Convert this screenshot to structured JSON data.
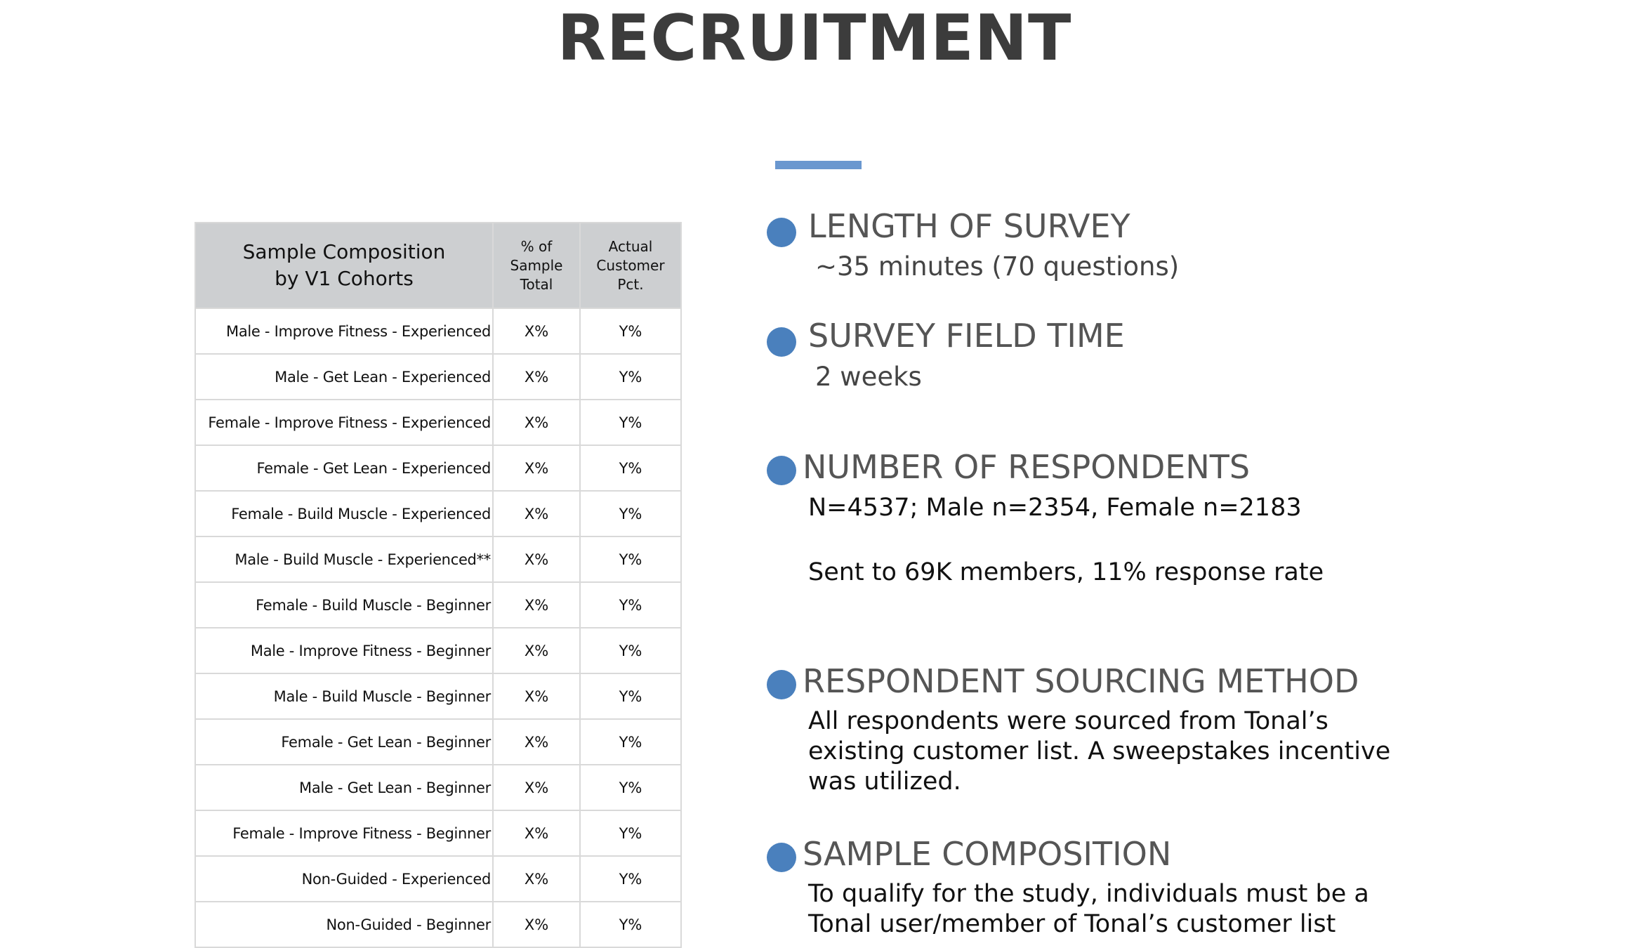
{
  "page": {
    "title": "RECRUITMENT"
  },
  "table": {
    "headers": {
      "cohort_line1": "Sample Composition",
      "cohort_line2": "by V1 Cohorts",
      "pct_line1": "% of",
      "pct_line2": "Sample",
      "pct_line3": "Total",
      "actual_line1": "Actual",
      "actual_line2": "Customer",
      "actual_line3": "Pct."
    },
    "rows": [
      {
        "cohort": "Male - Improve Fitness - Experienced",
        "pct": "X%",
        "actual": "Y%"
      },
      {
        "cohort": "Male - Get Lean - Experienced",
        "pct": "X%",
        "actual": "Y%"
      },
      {
        "cohort": "Female - Improve Fitness - Experienced",
        "pct": "X%",
        "actual": "Y%"
      },
      {
        "cohort": "Female - Get Lean - Experienced",
        "pct": "X%",
        "actual": "Y%"
      },
      {
        "cohort": "Female - Build Muscle - Experienced",
        "pct": "X%",
        "actual": "Y%"
      },
      {
        "cohort": "Male - Build Muscle - Experienced**",
        "pct": "X%",
        "actual": "Y%"
      },
      {
        "cohort": "Female - Build Muscle - Beginner",
        "pct": "X%",
        "actual": "Y%"
      },
      {
        "cohort": "Male - Improve Fitness - Beginner",
        "pct": "X%",
        "actual": "Y%"
      },
      {
        "cohort": "Male - Build Muscle - Beginner",
        "pct": "X%",
        "actual": "Y%"
      },
      {
        "cohort": "Female - Get Lean - Beginner",
        "pct": "X%",
        "actual": "Y%"
      },
      {
        "cohort": "Male - Get Lean - Beginner",
        "pct": "X%",
        "actual": "Y%"
      },
      {
        "cohort": "Female - Improve Fitness - Beginner",
        "pct": "X%",
        "actual": "Y%"
      },
      {
        "cohort": "Non-Guided - Experienced",
        "pct": "X%",
        "actual": "Y%"
      },
      {
        "cohort": "Non-Guided - Beginner",
        "pct": "X%",
        "actual": "Y%"
      }
    ]
  },
  "sections": {
    "length": {
      "heading": "LENGTH OF SURVEY",
      "detail": "~35 minutes (70 questions)"
    },
    "field_time": {
      "heading": "SURVEY FIELD TIME",
      "detail": "2 weeks"
    },
    "respondents": {
      "heading": "NUMBER OF RESPONDENTS",
      "detail1": "N=4537; Male n=2354, Female n=2183",
      "detail2": "Sent to 69K members, 11% response rate"
    },
    "sourcing": {
      "heading": "RESPONDENT SOURCING METHOD",
      "line1": "All respondents were sourced from Tonal’s",
      "line2": "existing customer list. A sweepstakes incentive",
      "line3": "was utilized."
    },
    "composition": {
      "heading": "SAMPLE COMPOSITION",
      "line1": "To qualify for the study, individuals must be a",
      "line2": "Tonal user/member of Tonal’s customer list"
    }
  },
  "colors": {
    "accent": "#6a97cf",
    "bullet": "#4a80bd",
    "table_header": "#cdcfd1"
  }
}
